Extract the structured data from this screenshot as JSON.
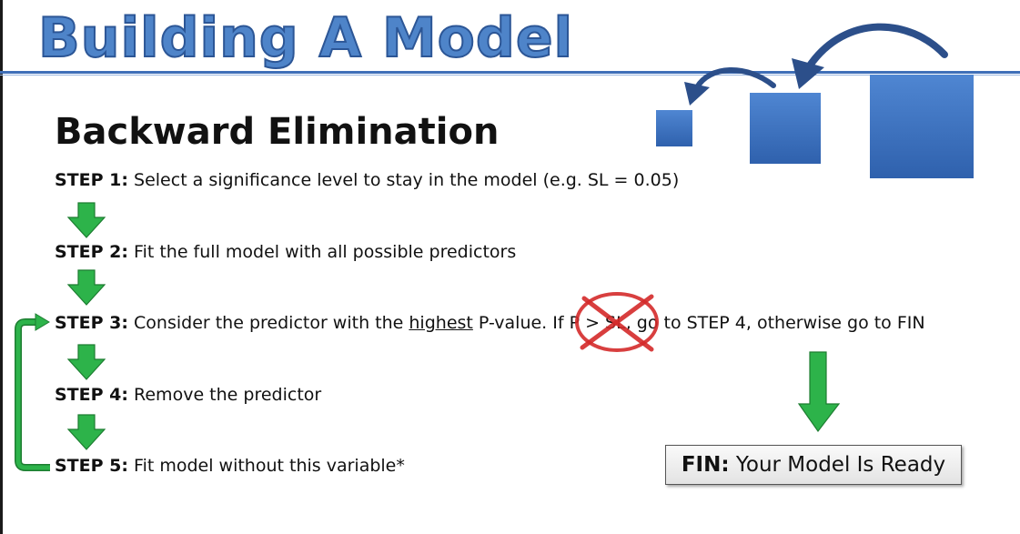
{
  "title": "Building A Model",
  "heading": "Backward Elimination",
  "steps": [
    {
      "label": "STEP 1:",
      "text": " Select a significance level to stay in the model (e.g. SL = 0.05)"
    },
    {
      "label": "STEP 2:",
      "text": " Fit the full model with all possible predictors"
    },
    {
      "label": "STEP 3:",
      "text_before": " Consider the predictor with the ",
      "emphasis": "highest",
      "text_after": " P-value. If P > SL, go to STEP 4, otherwise go to FIN"
    },
    {
      "label": "STEP 4:",
      "text": " Remove the predictor"
    },
    {
      "label": "STEP 5:",
      "text": " Fit model without this variable*"
    }
  ],
  "fin": {
    "label": "FIN:",
    "text": " Your Model Is Ready"
  },
  "colors": {
    "title_fill": "#4e84c9",
    "title_stroke": "#2c5696",
    "square_blue": "#3a6fbf",
    "arrow_blue": "#2c4f8a",
    "green_arrow": "#2db34a",
    "cross_red": "#d42a2a"
  },
  "icons": {
    "step_arrow": "green-down-arrow-icon",
    "loop": "green-loop-arrow-icon",
    "strike": "red-cross-icon",
    "decor": "shrinking-squares-icon"
  }
}
